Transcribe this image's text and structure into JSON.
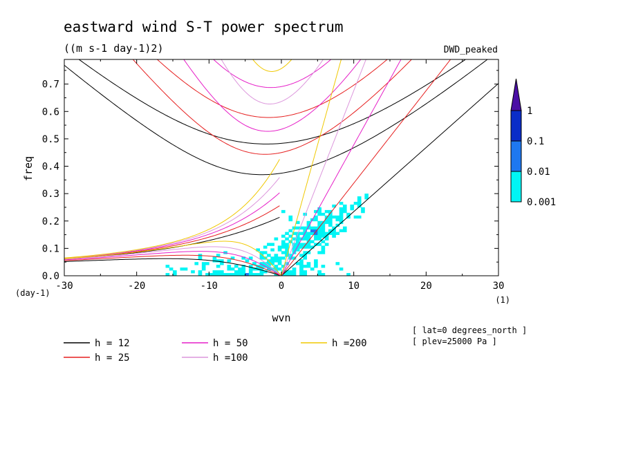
{
  "chart_data": {
    "type": "heatmap",
    "title": "eastward wind S-T power spectrum",
    "subtitle": "((m s-1 day-1)2)",
    "dataset_label": "DWD_peaked",
    "xlabel": "wvn",
    "ylabel": "freq",
    "x_unit_label": "(1)",
    "y_unit_label": "(day-1)",
    "xlim": [
      -30,
      30
    ],
    "ylim": [
      0,
      0.79
    ],
    "x_ticks": [
      -30,
      -20,
      -10,
      0,
      10,
      20,
      30
    ],
    "x_tick_labels": [
      "-30",
      "-20",
      "-10",
      "0",
      "10",
      "20",
      "30"
    ],
    "y_ticks": [
      0.0,
      0.1,
      0.2,
      0.3,
      0.4,
      0.5,
      0.6,
      0.7
    ],
    "y_tick_labels": [
      "0.0",
      "0.1",
      "0.2",
      "0.3",
      "0.4",
      "0.5",
      "0.6",
      "0.7"
    ],
    "colorbar": {
      "scale": "log",
      "levels": [
        0.001,
        0.01,
        0.1,
        1
      ],
      "labels": [
        "0.001",
        "0.01",
        "0.1",
        "1"
      ],
      "colors": [
        "#00f5f5",
        "#1e78f0",
        "#0a2dc8",
        "#4b0fa5"
      ]
    },
    "dispersion_curves": [
      {
        "name": "h = 12",
        "h": 12,
        "color": "#000000"
      },
      {
        "name": "h = 25",
        "h": 25,
        "color": "#e61e1e"
      },
      {
        "name": "h = 50",
        "h": 50,
        "color": "#e61ec8"
      },
      {
        "name": "h =100",
        "h": 100,
        "color": "#dc96dc"
      },
      {
        "name": "h =200",
        "h": 200,
        "color": "#f0c800"
      }
    ],
    "annotations": [
      "[ lat=0 degrees_north ]",
      "[ plev=25000 Pa ]"
    ]
  }
}
